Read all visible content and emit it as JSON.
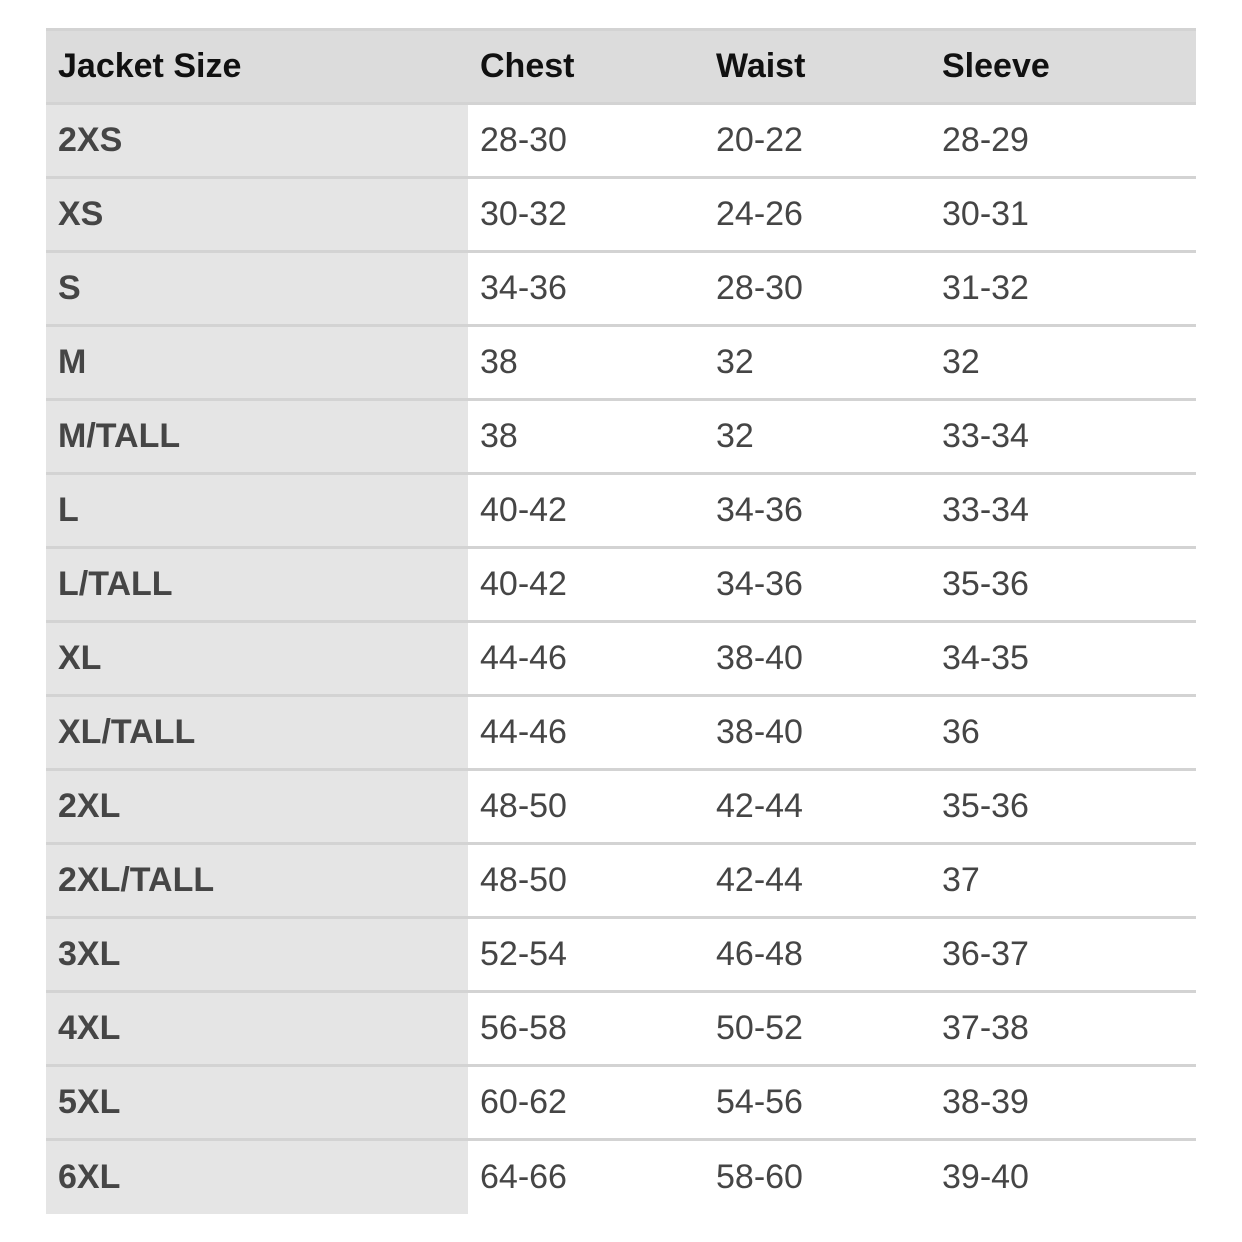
{
  "table": {
    "header": [
      "Jacket Size",
      "Chest",
      "Waist",
      "Sleeve"
    ],
    "rows": [
      [
        "2XS",
        "28-30",
        "20-22",
        "28-29"
      ],
      [
        "XS",
        "30-32",
        "24-26",
        "30-31"
      ],
      [
        "S",
        "34-36",
        "28-30",
        "31-32"
      ],
      [
        "M",
        "38",
        "32",
        "32"
      ],
      [
        "M/TALL",
        "38",
        "32",
        "33-34"
      ],
      [
        "L",
        "40-42",
        "34-36",
        "33-34"
      ],
      [
        "L/TALL",
        "40-42",
        "34-36",
        "35-36"
      ],
      [
        "XL",
        "44-46",
        "38-40",
        "34-35"
      ],
      [
        "XL/TALL",
        "44-46",
        "38-40",
        "36"
      ],
      [
        "2XL",
        "48-50",
        "42-44",
        "35-36"
      ],
      [
        "2XL/TALL",
        "48-50",
        "42-44",
        "37"
      ],
      [
        "3XL",
        "52-54",
        "46-48",
        "36-37"
      ],
      [
        "4XL",
        "56-58",
        "50-52",
        "37-38"
      ],
      [
        "5XL",
        "60-62",
        "54-56",
        "38-39"
      ],
      [
        "6XL",
        "64-66",
        "58-60",
        "39-40"
      ]
    ]
  }
}
